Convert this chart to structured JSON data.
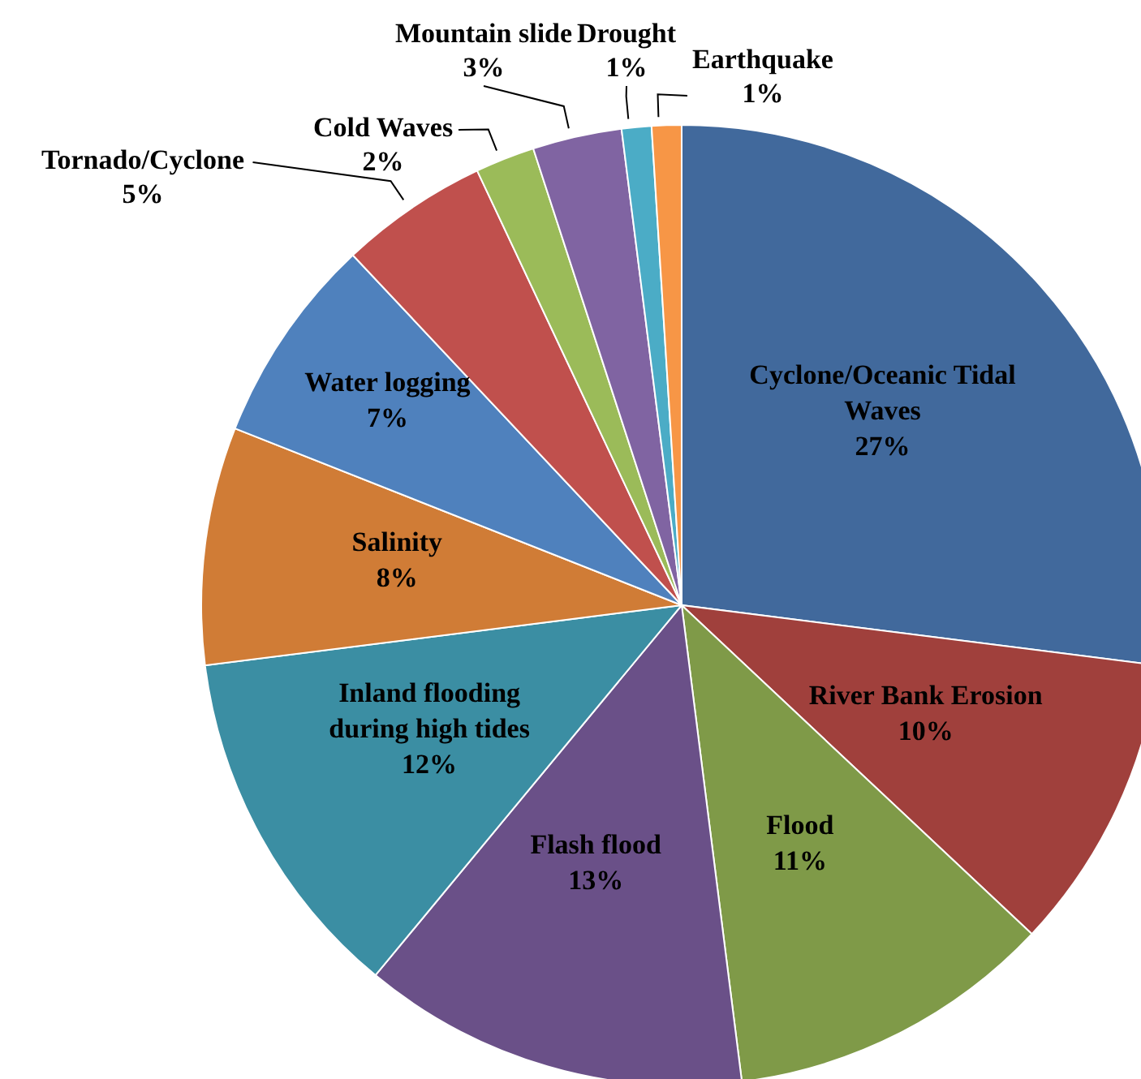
{
  "chart_data": {
    "type": "pie",
    "categories": [
      "Cyclone/Oceanic Tidal Waves",
      "River Bank Erosion",
      "Flood",
      "Flash flood",
      "Inland flooding during high tides",
      "Salinity",
      "Water logging",
      "Tornado/Cyclone",
      "Cold Waves",
      "Mountain slide",
      "Drought",
      "Earthquake"
    ],
    "values": [
      27,
      10,
      11,
      13,
      12,
      8,
      7,
      5,
      2,
      3,
      1,
      1
    ],
    "value_labels": [
      "27%",
      "10%",
      "11%",
      "13%",
      "12%",
      "8%",
      "7%",
      "5%",
      "2%",
      "3%",
      "1%",
      "1%"
    ],
    "colors": [
      "#41699c",
      "#a0403c",
      "#7f9a48",
      "#6a5088",
      "#3b8ea3",
      "#d07c36",
      "#4f81bd",
      "#c0504d",
      "#9bbb59",
      "#8064a2",
      "#4bacc6",
      "#f79646"
    ],
    "legend": false
  }
}
